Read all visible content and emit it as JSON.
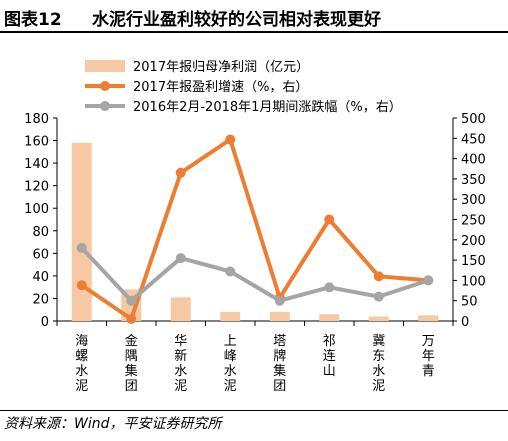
{
  "header": {
    "figure_number": "图表12",
    "title": "水泥行业盈利较好的公司相对表现更好"
  },
  "source_note": "资料来源：Wind，平安证券研究所",
  "chart_data": {
    "type": "bar",
    "categories": [
      [
        "海",
        "螺",
        "水",
        "泥"
      ],
      [
        "金",
        "隅",
        "集",
        "团"
      ],
      [
        "华",
        "新",
        "水",
        "泥"
      ],
      [
        "上",
        "峰",
        "水",
        "泥"
      ],
      [
        "塔",
        "牌",
        "集",
        "团"
      ],
      [
        "祁",
        "连",
        "山"
      ],
      [
        "冀",
        "东",
        "水",
        "泥"
      ],
      [
        "万",
        "年",
        "青"
      ]
    ],
    "series": [
      {
        "name": "2017年报归母净利润（亿元）",
        "kind": "bar",
        "axis": "left",
        "color": "#f7c8a4",
        "values": [
          158,
          28,
          21,
          8,
          8,
          6,
          4,
          5
        ]
      },
      {
        "name": "2017年报盈利增速（%，右）",
        "kind": "line",
        "axis": "right",
        "color": "#ed7d31",
        "values": [
          88,
          5,
          365,
          447,
          57,
          250,
          110,
          100
        ]
      },
      {
        "name": "2016年2月-2018年1月期间涨跌幅（%，右）",
        "kind": "line",
        "axis": "right",
        "color": "#a5a5a5",
        "values": [
          180,
          50,
          155,
          122,
          50,
          83,
          60,
          100
        ]
      }
    ],
    "y_left": {
      "min": 0,
      "max": 180,
      "ticks": [
        "0",
        "20",
        "40",
        "60",
        "80",
        "100",
        "120",
        "140",
        "160",
        "180"
      ]
    },
    "y_right": {
      "min": 0,
      "max": 500,
      "ticks": [
        "0",
        "50",
        "100",
        "150",
        "200",
        "250",
        "300",
        "350",
        "400",
        "450",
        "500"
      ]
    },
    "legend_position": "top-center",
    "grid": false
  }
}
